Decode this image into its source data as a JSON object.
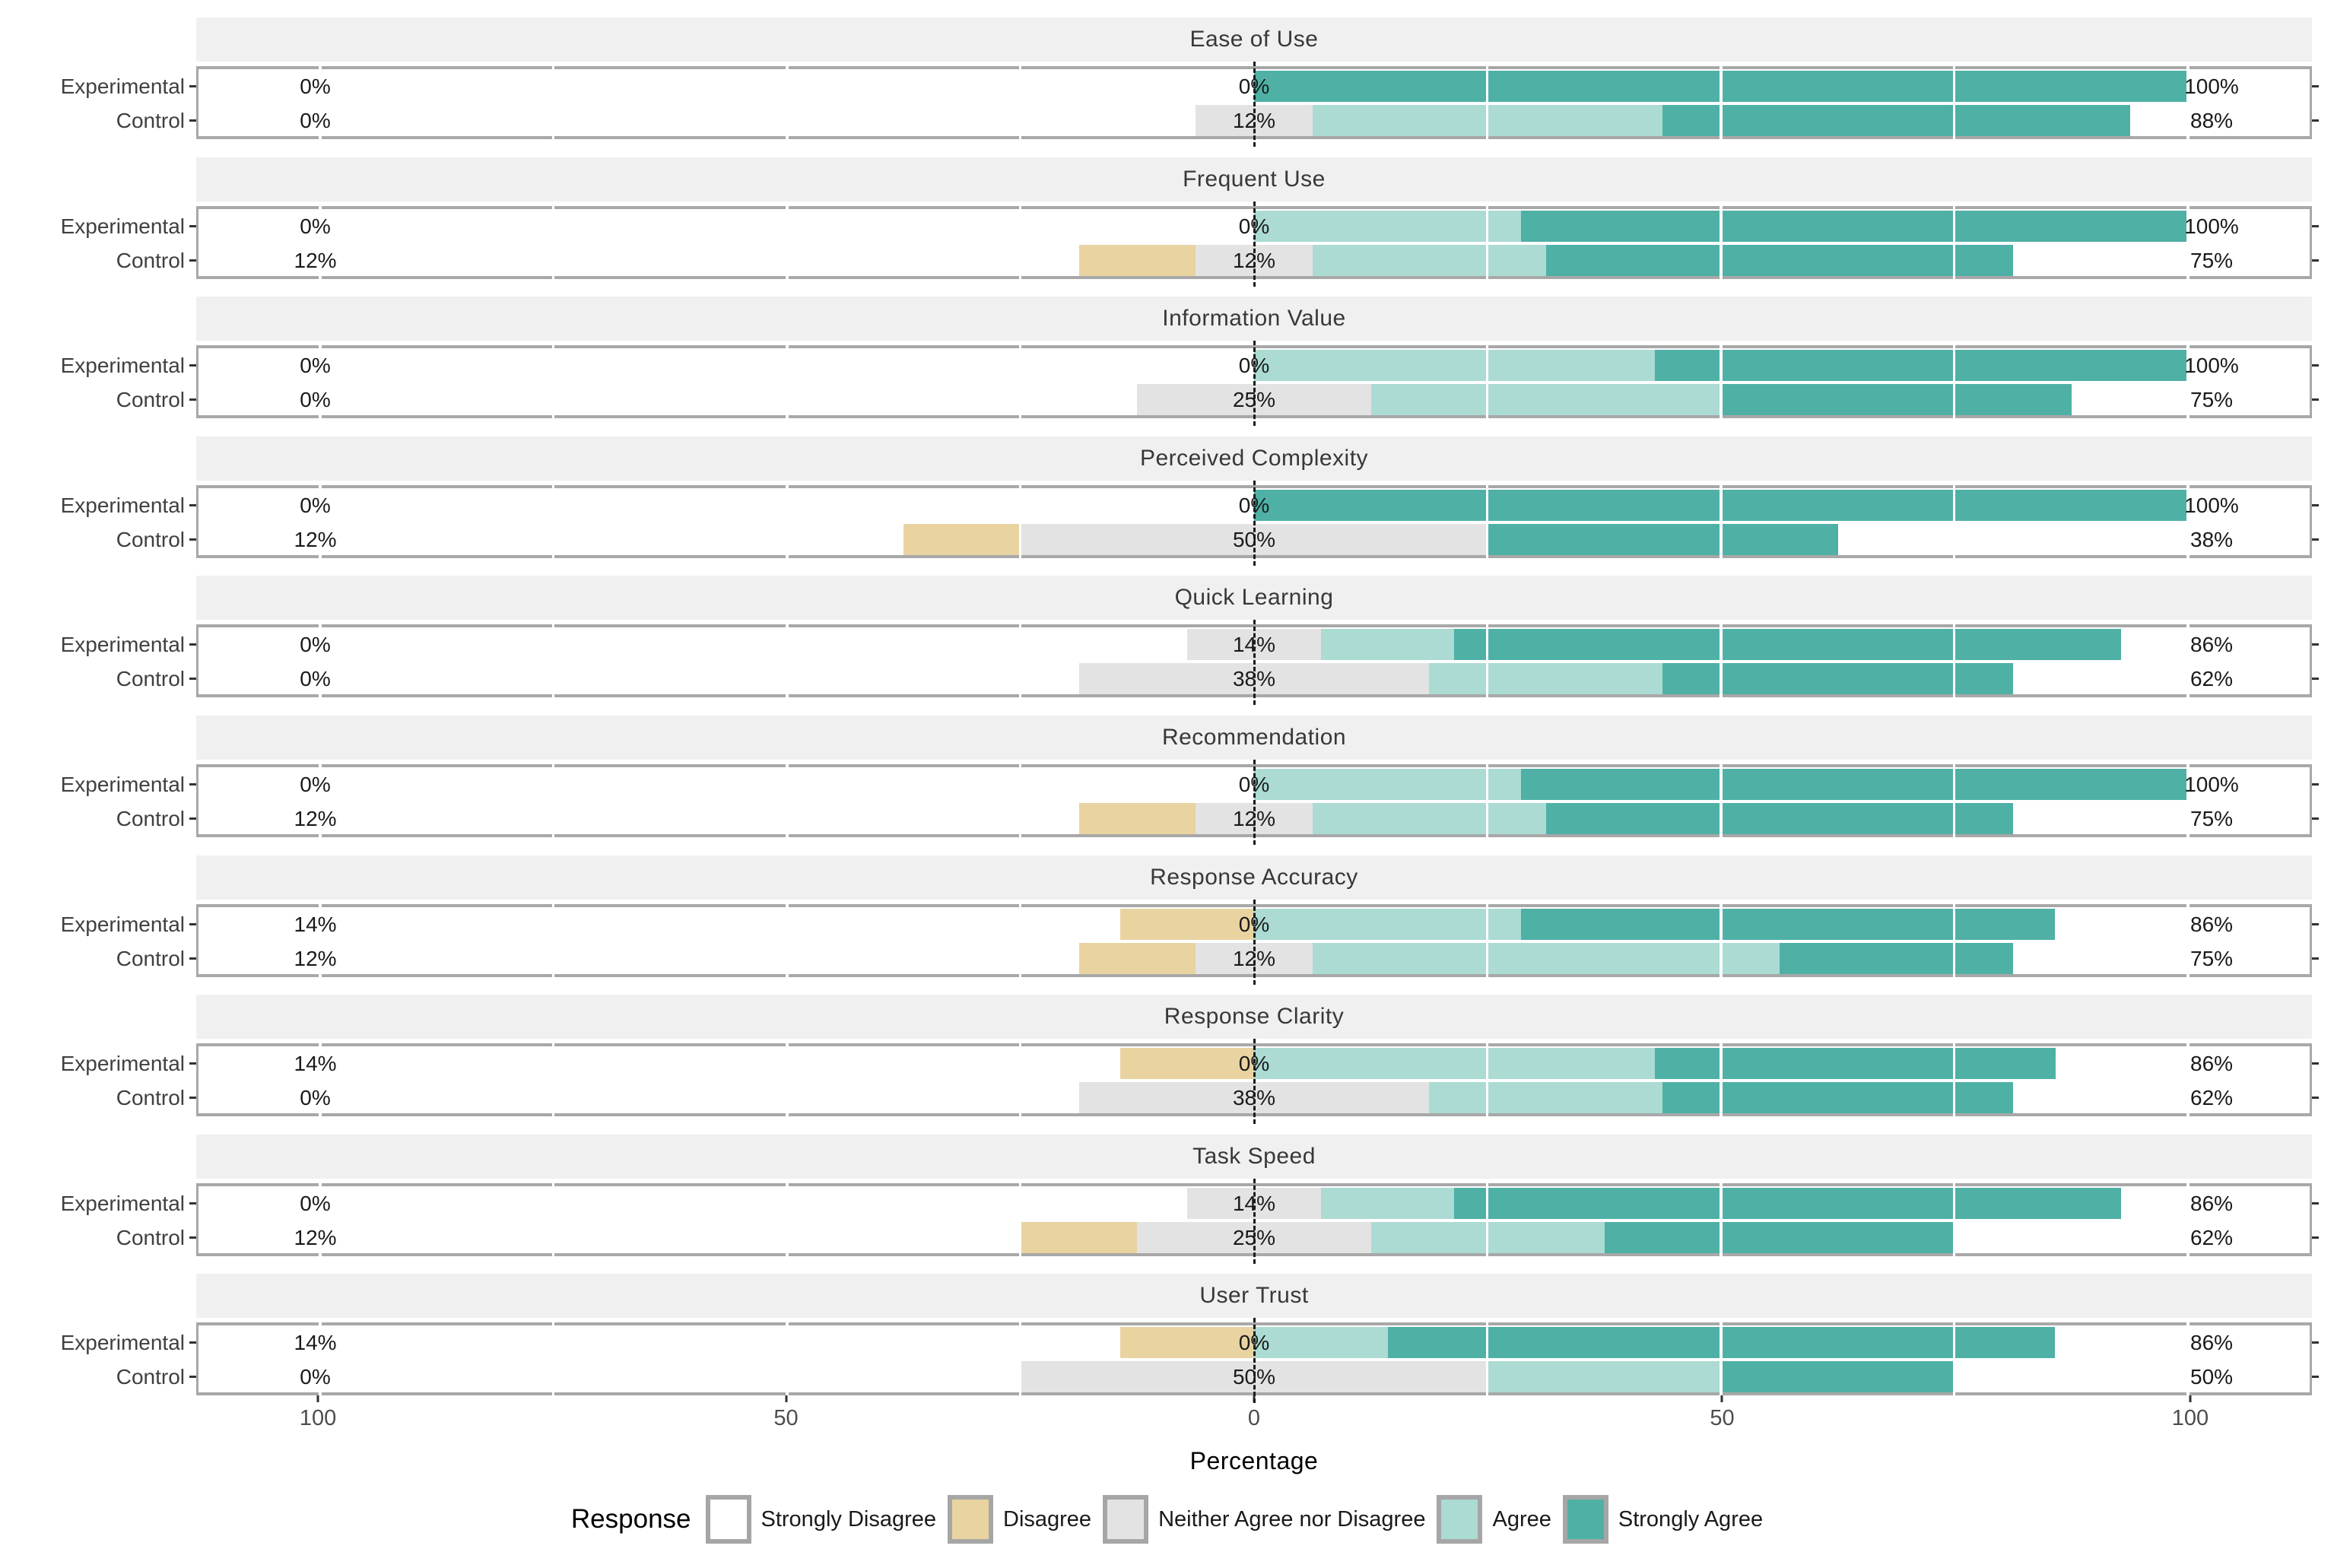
{
  "chart_data": {
    "type": "bar",
    "variant": "diverging_stacked_likert",
    "title": "",
    "xlabel": "Percentage",
    "x_range": [
      -113,
      113
    ],
    "x_ticks": [
      {
        "value": -100,
        "label": "100"
      },
      {
        "value": -50,
        "label": "50"
      },
      {
        "value": 0,
        "label": "0"
      },
      {
        "value": 50,
        "label": "50"
      },
      {
        "value": 100,
        "label": "100"
      }
    ],
    "grid_values": [
      -100,
      -75,
      -50,
      -25,
      25,
      50,
      75,
      100
    ],
    "legend_title": "Response",
    "response_levels": [
      "Strongly Disagree",
      "Disagree",
      "Neither Agree nor Disagree",
      "Agree",
      "Strongly Agree"
    ],
    "level_colors": [
      "#FFFFFF",
      "#E9D3A1",
      "#E3E3E3",
      "#ABDBD3",
      "#4FB0A6"
    ],
    "groups": [
      "Experimental",
      "Control"
    ],
    "panels": [
      {
        "title": "Ease of Use",
        "rows": [
          {
            "group": "Experimental",
            "values": [
              0,
              0,
              0,
              0,
              100
            ],
            "left_label": "0%",
            "center_label": "0%",
            "right_label": "100%"
          },
          {
            "group": "Control",
            "values": [
              0,
              0,
              12.5,
              37.5,
              50
            ],
            "left_label": "0%",
            "center_label": "12%",
            "right_label": "88%"
          }
        ]
      },
      {
        "title": "Frequent Use",
        "rows": [
          {
            "group": "Experimental",
            "values": [
              0,
              0,
              0,
              28.6,
              71.4
            ],
            "left_label": "0%",
            "center_label": "0%",
            "right_label": "100%"
          },
          {
            "group": "Control",
            "values": [
              0,
              12.5,
              12.5,
              25,
              50
            ],
            "left_label": "12%",
            "center_label": "12%",
            "right_label": "75%"
          }
        ]
      },
      {
        "title": "Information Value",
        "rows": [
          {
            "group": "Experimental",
            "values": [
              0,
              0,
              0,
              42.9,
              57.1
            ],
            "left_label": "0%",
            "center_label": "0%",
            "right_label": "100%"
          },
          {
            "group": "Control",
            "values": [
              0,
              0,
              25,
              37.5,
              37.5
            ],
            "left_label": "0%",
            "center_label": "25%",
            "right_label": "75%"
          }
        ]
      },
      {
        "title": "Perceived Complexity",
        "rows": [
          {
            "group": "Experimental",
            "values": [
              0,
              0,
              0,
              0,
              100
            ],
            "left_label": "0%",
            "center_label": "0%",
            "right_label": "100%"
          },
          {
            "group": "Control",
            "values": [
              0,
              12.5,
              50,
              0,
              37.5
            ],
            "left_label": "12%",
            "center_label": "50%",
            "right_label": "38%"
          }
        ]
      },
      {
        "title": "Quick Learning",
        "rows": [
          {
            "group": "Experimental",
            "values": [
              0,
              0,
              14.3,
              14.3,
              71.4
            ],
            "left_label": "0%",
            "center_label": "14%",
            "right_label": "86%"
          },
          {
            "group": "Control",
            "values": [
              0,
              0,
              37.5,
              25,
              37.5
            ],
            "left_label": "0%",
            "center_label": "38%",
            "right_label": "62%"
          }
        ]
      },
      {
        "title": "Recommendation",
        "rows": [
          {
            "group": "Experimental",
            "values": [
              0,
              0,
              0,
              28.6,
              71.4
            ],
            "left_label": "0%",
            "center_label": "0%",
            "right_label": "100%"
          },
          {
            "group": "Control",
            "values": [
              0,
              12.5,
              12.5,
              25,
              50
            ],
            "left_label": "12%",
            "center_label": "12%",
            "right_label": "75%"
          }
        ]
      },
      {
        "title": "Response Accuracy",
        "rows": [
          {
            "group": "Experimental",
            "values": [
              0,
              14.3,
              0,
              28.6,
              57.1
            ],
            "left_label": "14%",
            "center_label": "0%",
            "right_label": "86%"
          },
          {
            "group": "Control",
            "values": [
              0,
              12.5,
              12.5,
              50,
              25
            ],
            "left_label": "12%",
            "center_label": "12%",
            "right_label": "75%"
          }
        ]
      },
      {
        "title": "Response Clarity",
        "rows": [
          {
            "group": "Experimental",
            "values": [
              0,
              14.3,
              0,
              42.9,
              42.9
            ],
            "left_label": "14%",
            "center_label": "0%",
            "right_label": "86%"
          },
          {
            "group": "Control",
            "values": [
              0,
              0,
              37.5,
              25,
              37.5
            ],
            "left_label": "0%",
            "center_label": "38%",
            "right_label": "62%"
          }
        ]
      },
      {
        "title": "Task Speed",
        "rows": [
          {
            "group": "Experimental",
            "values": [
              0,
              0,
              14.3,
              14.3,
              71.4
            ],
            "left_label": "0%",
            "center_label": "14%",
            "right_label": "86%"
          },
          {
            "group": "Control",
            "values": [
              0,
              12.5,
              25,
              25,
              37.5
            ],
            "left_label": "12%",
            "center_label": "25%",
            "right_label": "62%"
          }
        ]
      },
      {
        "title": "User Trust",
        "rows": [
          {
            "group": "Experimental",
            "values": [
              0,
              14.3,
              0,
              14.3,
              71.4
            ],
            "left_label": "14%",
            "center_label": "0%",
            "right_label": "86%"
          },
          {
            "group": "Control",
            "values": [
              0,
              0,
              50,
              25,
              25
            ],
            "left_label": "0%",
            "center_label": "50%",
            "right_label": "50%"
          }
        ]
      }
    ]
  },
  "style": {
    "panel_border": "#A8A8A8",
    "strip_background": "#F0F0F0",
    "plot_background": "#FFFFFF",
    "grid_color": "#FFFFFF",
    "zero_line_color": "#1C1C1C",
    "tick_color": "#333333",
    "axis_label_color": "#4D4D4D",
    "text_color": "#1A1A1A"
  }
}
